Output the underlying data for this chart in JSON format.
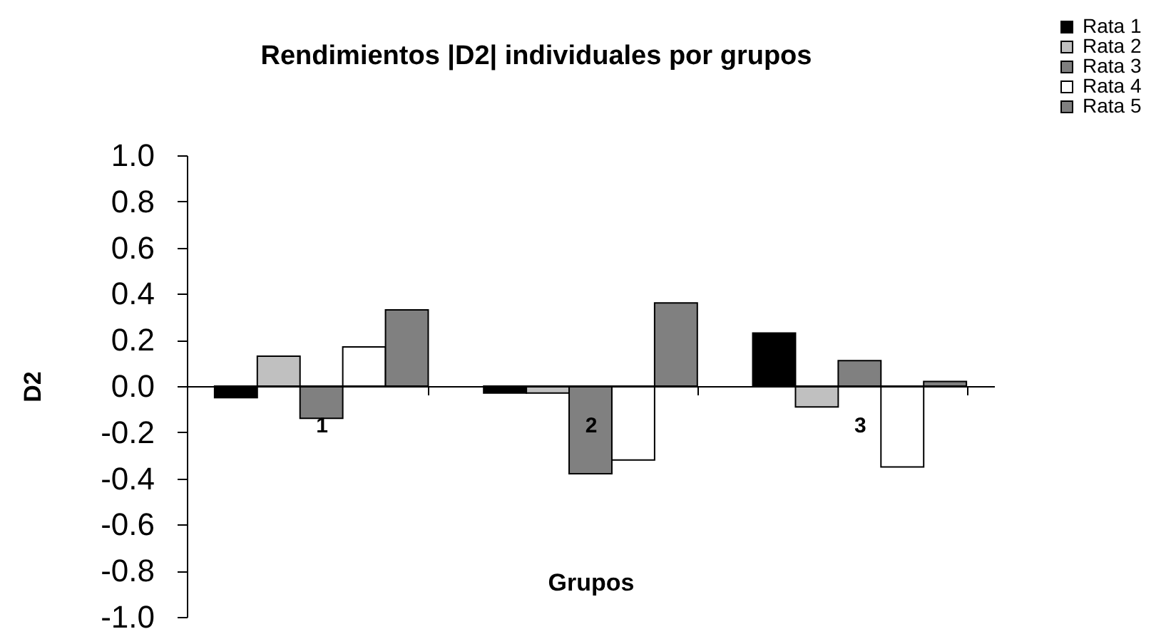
{
  "chart_data": {
    "type": "bar",
    "title": "Rendimientos |D2| individuales por grupos",
    "xlabel": "Grupos",
    "ylabel": "D2",
    "categories": [
      "1",
      "2",
      "3"
    ],
    "series": [
      {
        "name": "Rata 1",
        "color": "#000000",
        "values": [
          -0.05,
          -0.03,
          0.23
        ]
      },
      {
        "name": "Rata 2",
        "color": "#c0c0c0",
        "values": [
          0.13,
          -0.03,
          -0.09
        ]
      },
      {
        "name": "Rata 3",
        "color": "#808080",
        "values": [
          -0.14,
          -0.38,
          0.11
        ]
      },
      {
        "name": "Rata 4",
        "color": "#ffffff",
        "values": [
          0.17,
          -0.32,
          -0.35
        ]
      },
      {
        "name": "Rata 5",
        "color": "#808080",
        "values": [
          0.33,
          0.36,
          0.02
        ]
      }
    ],
    "ylim": [
      -1,
      1
    ],
    "yticks": [
      {
        "value": -1,
        "label": "-1.0"
      },
      {
        "value": -0.8,
        "label": "-0.8"
      },
      {
        "value": -0.6,
        "label": "-0.6"
      },
      {
        "value": -0.4,
        "label": "-0.4"
      },
      {
        "value": -0.2,
        "label": "-0.2"
      },
      {
        "value": 0,
        "label": "0.0"
      },
      {
        "value": 0.2,
        "label": "0.2"
      },
      {
        "value": 0.4,
        "label": "0.4"
      },
      {
        "value": 0.6,
        "label": "0.6"
      },
      {
        "value": 0.8,
        "label": "0.8"
      },
      {
        "value": 1,
        "label": "1.0"
      }
    ],
    "grid": false,
    "legend": "top right"
  }
}
